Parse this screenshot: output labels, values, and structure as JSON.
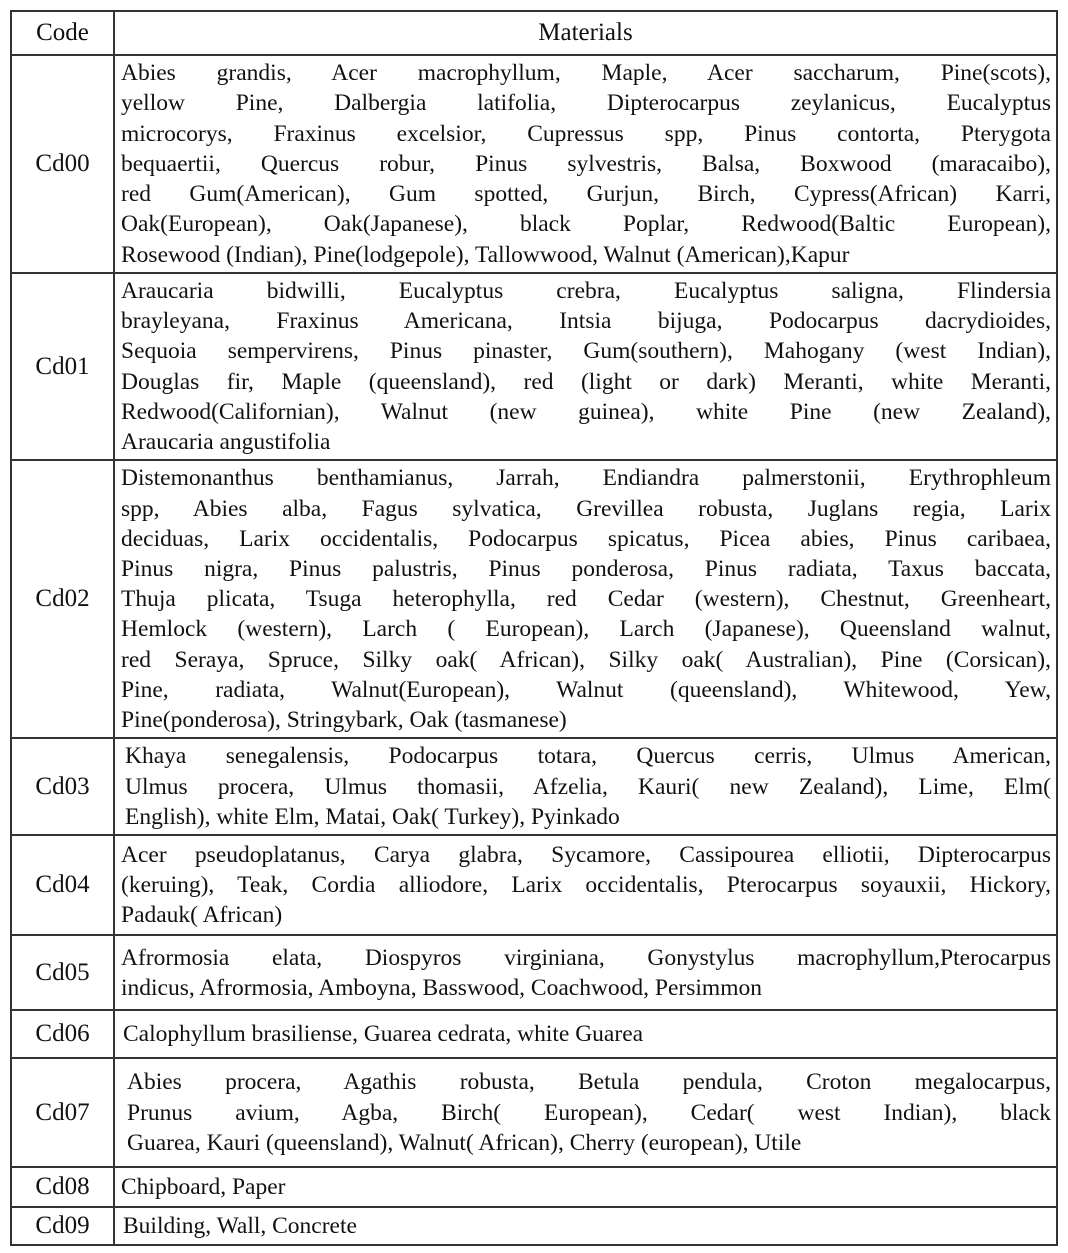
{
  "header": {
    "code": "Code",
    "materials": "Materials"
  },
  "rows": [
    {
      "code": "Cd00",
      "lines": [
        "Abies grandis, Acer macrophyllum, Maple, Acer saccharum, Pine(scots),",
        "yellow Pine, Dalbergia latifolia, Dipterocarpus zeylanicus,  Eucalyptus",
        "microcorys, Fraxinus excelsior, Cupressus spp, Pinus contorta, Pterygota",
        "bequaertii, Quercus robur, Pinus sylvestris, Balsa,  Boxwood (maracaibo),",
        "red Gum(American), Gum spotted, Gurjun, Birch, Cypress(African) Karri,",
        "Oak(European), Oak(Japanese), black Poplar, Redwood(Baltic European),",
        "Rosewood (Indian), Pine(lodgepole), Tallowwood, Walnut (American),Kapur"
      ]
    },
    {
      "code": "Cd01",
      "lines": [
        "Araucaria bidwilli, Eucalyptus crebra, Eucalyptus saligna, Flindersia",
        "brayleyana, Fraxinus Americana, Intsia bijuga, Podocarpus dacrydioides,",
        "Sequoia sempervirens, Pinus pinaster, Gum(southern), Mahogany (west Indian),",
        "Douglas fir, Maple (queensland), red (light or dark) Meranti, white Meranti,",
        "Redwood(Californian), Walnut (new guinea), white Pine (new Zealand),",
        "Araucaria angustifolia"
      ]
    },
    {
      "code": "Cd02",
      "lines": [
        "Distemonanthus benthamianus, Jarrah, Endiandra palmerstonii, Erythrophleum",
        "spp, Abies alba, Fagus sylvatica, Grevillea robusta, Juglans regia, Larix",
        "deciduas, Larix occidentalis, Podocarpus spicatus, Picea abies, Pinus caribaea,",
        "Pinus nigra, Pinus palustris, Pinus ponderosa, Pinus radiata, Taxus baccata,",
        "Thuja plicata, Tsuga heterophylla, red Cedar (western),  Chestnut, Greenheart,",
        "Hemlock (western), Larch ( European), Larch (Japanese), Queensland walnut,",
        "red Seraya, Spruce, Silky oak( African), Silky oak( Australian), Pine (Corsican),",
        "Pine, radiata, Walnut(European), Walnut (queensland), Whitewood, Yew,",
        "Pine(ponderosa), Stringybark, Oak (tasmanese)"
      ]
    },
    {
      "code": "Cd03",
      "lines": [
        "Khaya senegalensis, Podocarpus totara, Quercus cerris, Ulmus American,",
        "Ulmus procera, Ulmus thomasii, Afzelia, Kauri( new Zealand), Lime, Elm(",
        "English), white Elm, Matai, Oak( Turkey), Pyinkado"
      ]
    },
    {
      "code": "Cd04",
      "lines": [
        "Acer pseudoplatanus, Carya glabra, Sycamore,  Cassipourea elliotii, Dipterocarpus",
        "(keruing), Teak, Cordia alliodore, Larix occidentalis, Pterocarpus soyauxii, Hickory,",
        "Padauk( African)"
      ]
    },
    {
      "code": "Cd05",
      "lines": [
        "Afrormosia elata, Diospyros virginiana, Gonystylus macrophyllum,Pterocarpus",
        "indicus, Afrormosia, Amboyna, Basswood, Coachwood, Persimmon"
      ]
    },
    {
      "code": "Cd06",
      "lines": [
        "Calophyllum brasiliense, Guarea cedrata, white Guarea"
      ]
    },
    {
      "code": "Cd07",
      "lines": [
        "Abies procera, Agathis robusta, Betula pendula, Croton megalocarpus,",
        "Prunus avium, Agba, Birch( European), Cedar( west Indian), black",
        "Guarea, Kauri (queensland), Walnut( African), Cherry (european), Utile"
      ]
    },
    {
      "code": "Cd08",
      "lines": [
        "Chipboard, Paper"
      ]
    },
    {
      "code": "Cd09",
      "lines": [
        "Building, Wall, Concrete"
      ]
    }
  ]
}
